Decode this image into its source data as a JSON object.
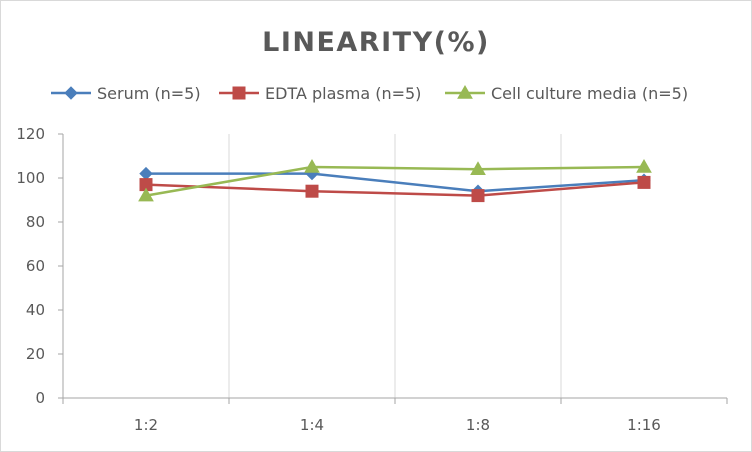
{
  "chart_data": {
    "type": "line",
    "title": "LINEARITY(%)",
    "xlabel": "",
    "ylabel": "",
    "categories": [
      "1:2",
      "1:4",
      "1:8",
      "1:16"
    ],
    "ylim": [
      0,
      120
    ],
    "yticks": [
      0,
      20,
      40,
      60,
      80,
      100,
      120
    ],
    "grid": "vertical",
    "legend_position": "top",
    "series": [
      {
        "name": "Serum (n=5)",
        "color": "#4a7ebb",
        "marker": "diamond",
        "values": [
          102,
          102,
          94,
          99
        ]
      },
      {
        "name": "EDTA plasma (n=5)",
        "color": "#be4b48",
        "marker": "square",
        "values": [
          97,
          94,
          92,
          98
        ]
      },
      {
        "name": "Cell culture media (n=5)",
        "color": "#98b954",
        "marker": "triangle",
        "values": [
          92,
          105,
          104,
          105
        ]
      }
    ]
  }
}
